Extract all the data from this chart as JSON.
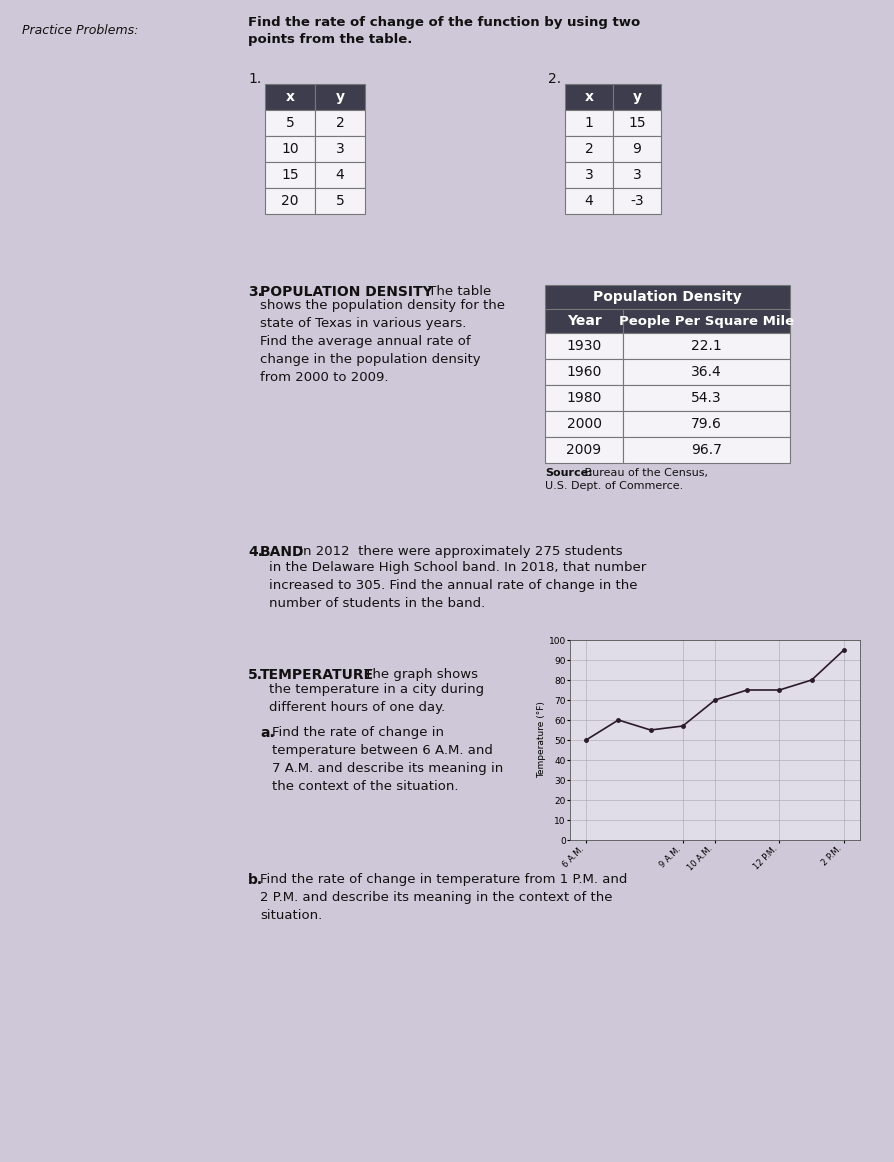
{
  "bg_color": "#cfc8d8",
  "page_width": 8.94,
  "page_height": 11.62,
  "practice_label": "Practice Problems:",
  "main_instruction_bold": "Find the rate of change of the function by using two\npoints from the table.",
  "label1": "1.",
  "table1_header": [
    "x",
    "y"
  ],
  "table1_data": [
    [
      "5",
      "2"
    ],
    [
      "10",
      "3"
    ],
    [
      "15",
      "4"
    ],
    [
      "20",
      "5"
    ]
  ],
  "label2": "2.",
  "table2_header": [
    "x",
    "y"
  ],
  "table2_data": [
    [
      "1",
      "15"
    ],
    [
      "2",
      "9"
    ],
    [
      "3",
      "3"
    ],
    [
      "4",
      "-3"
    ]
  ],
  "p3_num": "3.",
  "p3_bold": "POPULATION DENSITY",
  "p3_text": " The table\nshows the population density for the\nstate of Texas in various years.\nFind the average annual rate of\nchange in the population density\nfrom 2000 to 2009.",
  "pop_table_title": "Population Density",
  "pop_col1_header": "Year",
  "pop_col2_header": "People Per Square Mile",
  "pop_table_data": [
    [
      "1930",
      "22.1"
    ],
    [
      "1960",
      "36.4"
    ],
    [
      "1980",
      "54.3"
    ],
    [
      "2000",
      "79.6"
    ],
    [
      "2009",
      "96.7"
    ]
  ],
  "pop_source_bold": "Source:",
  "pop_source_text": " Bureau of the Census,\nU.S. Dept. of Commerce.",
  "p4_num": "4.",
  "p4_bold": " BAND",
  "p4_text": " In 2012  there were approximately 275 students\nin the Delaware High School band. In 2018, that number\nincreased to 305. Find the annual rate of change in the\nnumber of students in the band.",
  "p5_num": "5.",
  "p5_bold": " TEMPERATURE",
  "p5_text": " The graph shows\nthe temperature in a city during\ndifferent hours of one day.",
  "p5a_bold": "a.",
  "p5a_text": " Find the rate of change in\ntemperature between 6 A.M. and\n7 A.M. and describe its meaning in\nthe context of the situation.",
  "p5b_bold": "b.",
  "p5b_text": " Find the rate of change in temperature from 1 P.M. and\n2 P.M. and describe its meaning in the context of the\nsituation.",
  "graph_xtick_labels": [
    "6 A.M.",
    "9 A.M.",
    "10 A.M.",
    "12 P.M.",
    "2 P.M."
  ],
  "graph_xtick_pos": [
    0,
    3,
    4,
    6,
    8
  ],
  "graph_ylabel": "Temperature (°F)",
  "graph_yticks": [
    0,
    10,
    20,
    30,
    40,
    50,
    60,
    70,
    80,
    90,
    100
  ],
  "graph_x": [
    0,
    1,
    2,
    3,
    4,
    5,
    6,
    7,
    8
  ],
  "graph_y": [
    50,
    60,
    55,
    57,
    70,
    75,
    75,
    80,
    95
  ],
  "graph_line_color": "#2a1a2a",
  "graph_face_color": "#e0dce8",
  "dark_header_bg": "#3d3d4d",
  "dark_header_fg": "#ffffff",
  "table_border": "#777777",
  "table_row_bg": "#f5f2f8",
  "text_color": "#111111"
}
